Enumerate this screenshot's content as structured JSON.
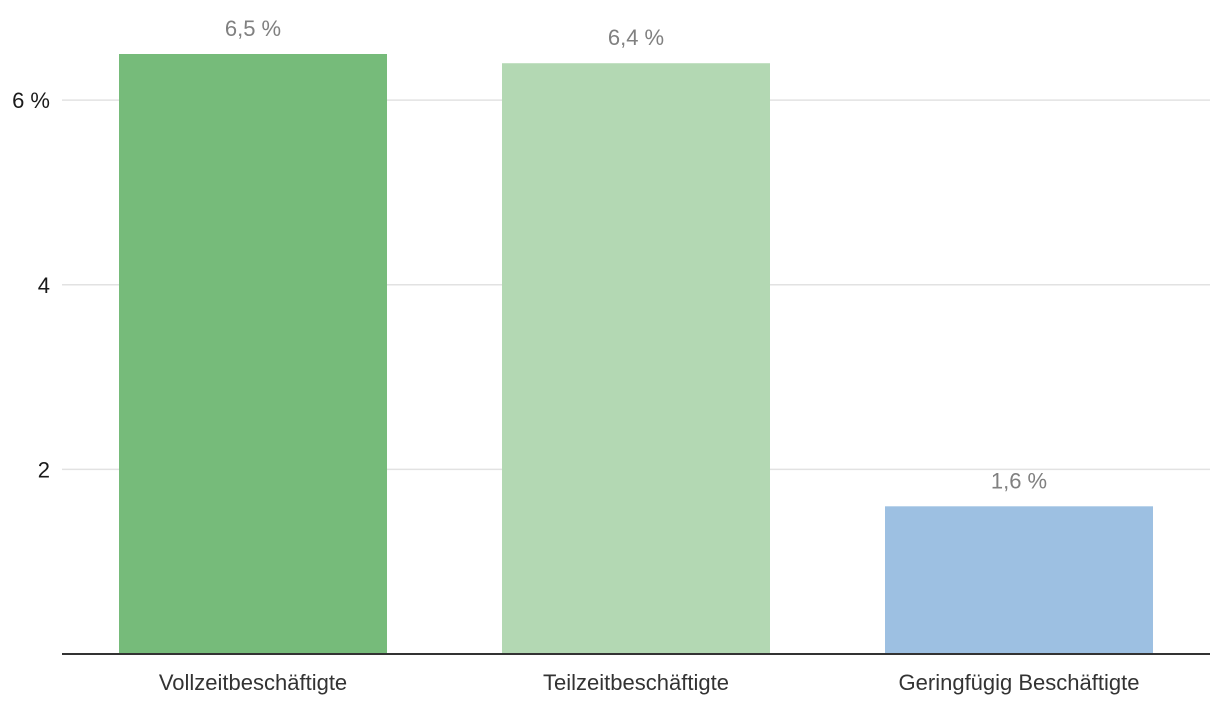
{
  "chart_data": {
    "type": "bar",
    "categories": [
      "Vollzeitbeschäftigte",
      "Teilzeitbeschäftigte",
      "Geringfügig Beschäftigte"
    ],
    "values": [
      6.5,
      6.4,
      1.6
    ],
    "value_labels": [
      "6,5 %",
      "6,4 %",
      "1,6 %"
    ],
    "colors": [
      "#76bb7a",
      "#b3d8b3",
      "#9dc0e2"
    ],
    "ylim": [
      0,
      6.5
    ],
    "yticks": [
      2,
      4,
      6
    ],
    "ytick_labels": [
      "2",
      "4",
      "6 %"
    ],
    "grid": true,
    "title": "",
    "xlabel": "",
    "ylabel": ""
  }
}
